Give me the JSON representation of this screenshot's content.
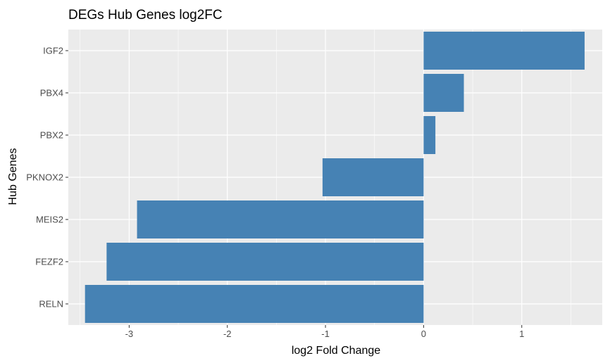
{
  "chart_data": {
    "type": "bar",
    "orientation": "horizontal",
    "title": "DEGs Hub Genes log2FC",
    "xlabel": "log2 Fold Change",
    "ylabel": "Hub Genes",
    "categories": [
      "RELN",
      "FEZF2",
      "MEIS2",
      "PKNOX2",
      "PBX2",
      "PBX4",
      "IGF2"
    ],
    "values": [
      -3.45,
      -3.23,
      -2.92,
      -1.03,
      0.12,
      0.41,
      1.64
    ],
    "xlim": [
      -3.62,
      1.82
    ],
    "xticks": [
      -3,
      -2,
      -1,
      0,
      1
    ],
    "xtick_labels": [
      "-3",
      "-2",
      "-1",
      "0",
      "1"
    ],
    "grid": true,
    "bar_color": "#4682B4",
    "panel_color": "#EBEBEB",
    "gridline_color": "#FFFFFF"
  }
}
